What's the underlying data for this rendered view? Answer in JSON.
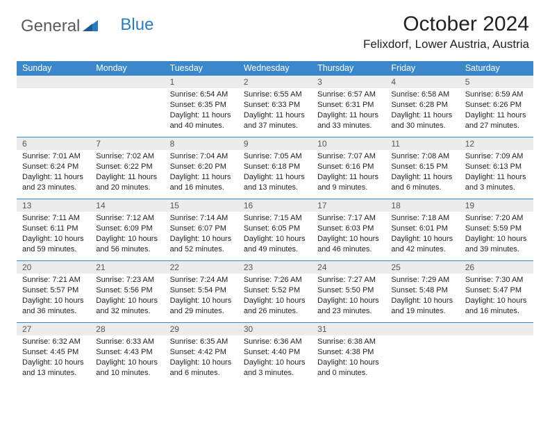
{
  "logo": {
    "text_general": "General",
    "text_blue": "Blue"
  },
  "title": "October 2024",
  "location": "Felixdorf, Lower Austria, Austria",
  "colors": {
    "header_bg": "#3a87c9",
    "header_text": "#ffffff",
    "daynum_bg": "#ececec",
    "border": "#3a87c9",
    "body_text": "#222222",
    "logo_gray": "#5a5a5a",
    "logo_blue": "#2b7bbf"
  },
  "day_names": [
    "Sunday",
    "Monday",
    "Tuesday",
    "Wednesday",
    "Thursday",
    "Friday",
    "Saturday"
  ],
  "weeks": [
    [
      {
        "n": "",
        "lines": [
          "",
          "",
          "",
          ""
        ]
      },
      {
        "n": "",
        "lines": [
          "",
          "",
          "",
          ""
        ]
      },
      {
        "n": "1",
        "lines": [
          "Sunrise: 6:54 AM",
          "Sunset: 6:35 PM",
          "Daylight: 11 hours",
          "and 40 minutes."
        ]
      },
      {
        "n": "2",
        "lines": [
          "Sunrise: 6:55 AM",
          "Sunset: 6:33 PM",
          "Daylight: 11 hours",
          "and 37 minutes."
        ]
      },
      {
        "n": "3",
        "lines": [
          "Sunrise: 6:57 AM",
          "Sunset: 6:31 PM",
          "Daylight: 11 hours",
          "and 33 minutes."
        ]
      },
      {
        "n": "4",
        "lines": [
          "Sunrise: 6:58 AM",
          "Sunset: 6:28 PM",
          "Daylight: 11 hours",
          "and 30 minutes."
        ]
      },
      {
        "n": "5",
        "lines": [
          "Sunrise: 6:59 AM",
          "Sunset: 6:26 PM",
          "Daylight: 11 hours",
          "and 27 minutes."
        ]
      }
    ],
    [
      {
        "n": "6",
        "lines": [
          "Sunrise: 7:01 AM",
          "Sunset: 6:24 PM",
          "Daylight: 11 hours",
          "and 23 minutes."
        ]
      },
      {
        "n": "7",
        "lines": [
          "Sunrise: 7:02 AM",
          "Sunset: 6:22 PM",
          "Daylight: 11 hours",
          "and 20 minutes."
        ]
      },
      {
        "n": "8",
        "lines": [
          "Sunrise: 7:04 AM",
          "Sunset: 6:20 PM",
          "Daylight: 11 hours",
          "and 16 minutes."
        ]
      },
      {
        "n": "9",
        "lines": [
          "Sunrise: 7:05 AM",
          "Sunset: 6:18 PM",
          "Daylight: 11 hours",
          "and 13 minutes."
        ]
      },
      {
        "n": "10",
        "lines": [
          "Sunrise: 7:07 AM",
          "Sunset: 6:16 PM",
          "Daylight: 11 hours",
          "and 9 minutes."
        ]
      },
      {
        "n": "11",
        "lines": [
          "Sunrise: 7:08 AM",
          "Sunset: 6:15 PM",
          "Daylight: 11 hours",
          "and 6 minutes."
        ]
      },
      {
        "n": "12",
        "lines": [
          "Sunrise: 7:09 AM",
          "Sunset: 6:13 PM",
          "Daylight: 11 hours",
          "and 3 minutes."
        ]
      }
    ],
    [
      {
        "n": "13",
        "lines": [
          "Sunrise: 7:11 AM",
          "Sunset: 6:11 PM",
          "Daylight: 10 hours",
          "and 59 minutes."
        ]
      },
      {
        "n": "14",
        "lines": [
          "Sunrise: 7:12 AM",
          "Sunset: 6:09 PM",
          "Daylight: 10 hours",
          "and 56 minutes."
        ]
      },
      {
        "n": "15",
        "lines": [
          "Sunrise: 7:14 AM",
          "Sunset: 6:07 PM",
          "Daylight: 10 hours",
          "and 52 minutes."
        ]
      },
      {
        "n": "16",
        "lines": [
          "Sunrise: 7:15 AM",
          "Sunset: 6:05 PM",
          "Daylight: 10 hours",
          "and 49 minutes."
        ]
      },
      {
        "n": "17",
        "lines": [
          "Sunrise: 7:17 AM",
          "Sunset: 6:03 PM",
          "Daylight: 10 hours",
          "and 46 minutes."
        ]
      },
      {
        "n": "18",
        "lines": [
          "Sunrise: 7:18 AM",
          "Sunset: 6:01 PM",
          "Daylight: 10 hours",
          "and 42 minutes."
        ]
      },
      {
        "n": "19",
        "lines": [
          "Sunrise: 7:20 AM",
          "Sunset: 5:59 PM",
          "Daylight: 10 hours",
          "and 39 minutes."
        ]
      }
    ],
    [
      {
        "n": "20",
        "lines": [
          "Sunrise: 7:21 AM",
          "Sunset: 5:57 PM",
          "Daylight: 10 hours",
          "and 36 minutes."
        ]
      },
      {
        "n": "21",
        "lines": [
          "Sunrise: 7:23 AM",
          "Sunset: 5:56 PM",
          "Daylight: 10 hours",
          "and 32 minutes."
        ]
      },
      {
        "n": "22",
        "lines": [
          "Sunrise: 7:24 AM",
          "Sunset: 5:54 PM",
          "Daylight: 10 hours",
          "and 29 minutes."
        ]
      },
      {
        "n": "23",
        "lines": [
          "Sunrise: 7:26 AM",
          "Sunset: 5:52 PM",
          "Daylight: 10 hours",
          "and 26 minutes."
        ]
      },
      {
        "n": "24",
        "lines": [
          "Sunrise: 7:27 AM",
          "Sunset: 5:50 PM",
          "Daylight: 10 hours",
          "and 23 minutes."
        ]
      },
      {
        "n": "25",
        "lines": [
          "Sunrise: 7:29 AM",
          "Sunset: 5:48 PM",
          "Daylight: 10 hours",
          "and 19 minutes."
        ]
      },
      {
        "n": "26",
        "lines": [
          "Sunrise: 7:30 AM",
          "Sunset: 5:47 PM",
          "Daylight: 10 hours",
          "and 16 minutes."
        ]
      }
    ],
    [
      {
        "n": "27",
        "lines": [
          "Sunrise: 6:32 AM",
          "Sunset: 4:45 PM",
          "Daylight: 10 hours",
          "and 13 minutes."
        ]
      },
      {
        "n": "28",
        "lines": [
          "Sunrise: 6:33 AM",
          "Sunset: 4:43 PM",
          "Daylight: 10 hours",
          "and 10 minutes."
        ]
      },
      {
        "n": "29",
        "lines": [
          "Sunrise: 6:35 AM",
          "Sunset: 4:42 PM",
          "Daylight: 10 hours",
          "and 6 minutes."
        ]
      },
      {
        "n": "30",
        "lines": [
          "Sunrise: 6:36 AM",
          "Sunset: 4:40 PM",
          "Daylight: 10 hours",
          "and 3 minutes."
        ]
      },
      {
        "n": "31",
        "lines": [
          "Sunrise: 6:38 AM",
          "Sunset: 4:38 PM",
          "Daylight: 10 hours",
          "and 0 minutes."
        ]
      },
      {
        "n": "",
        "lines": [
          "",
          "",
          "",
          ""
        ]
      },
      {
        "n": "",
        "lines": [
          "",
          "",
          "",
          ""
        ]
      }
    ]
  ]
}
